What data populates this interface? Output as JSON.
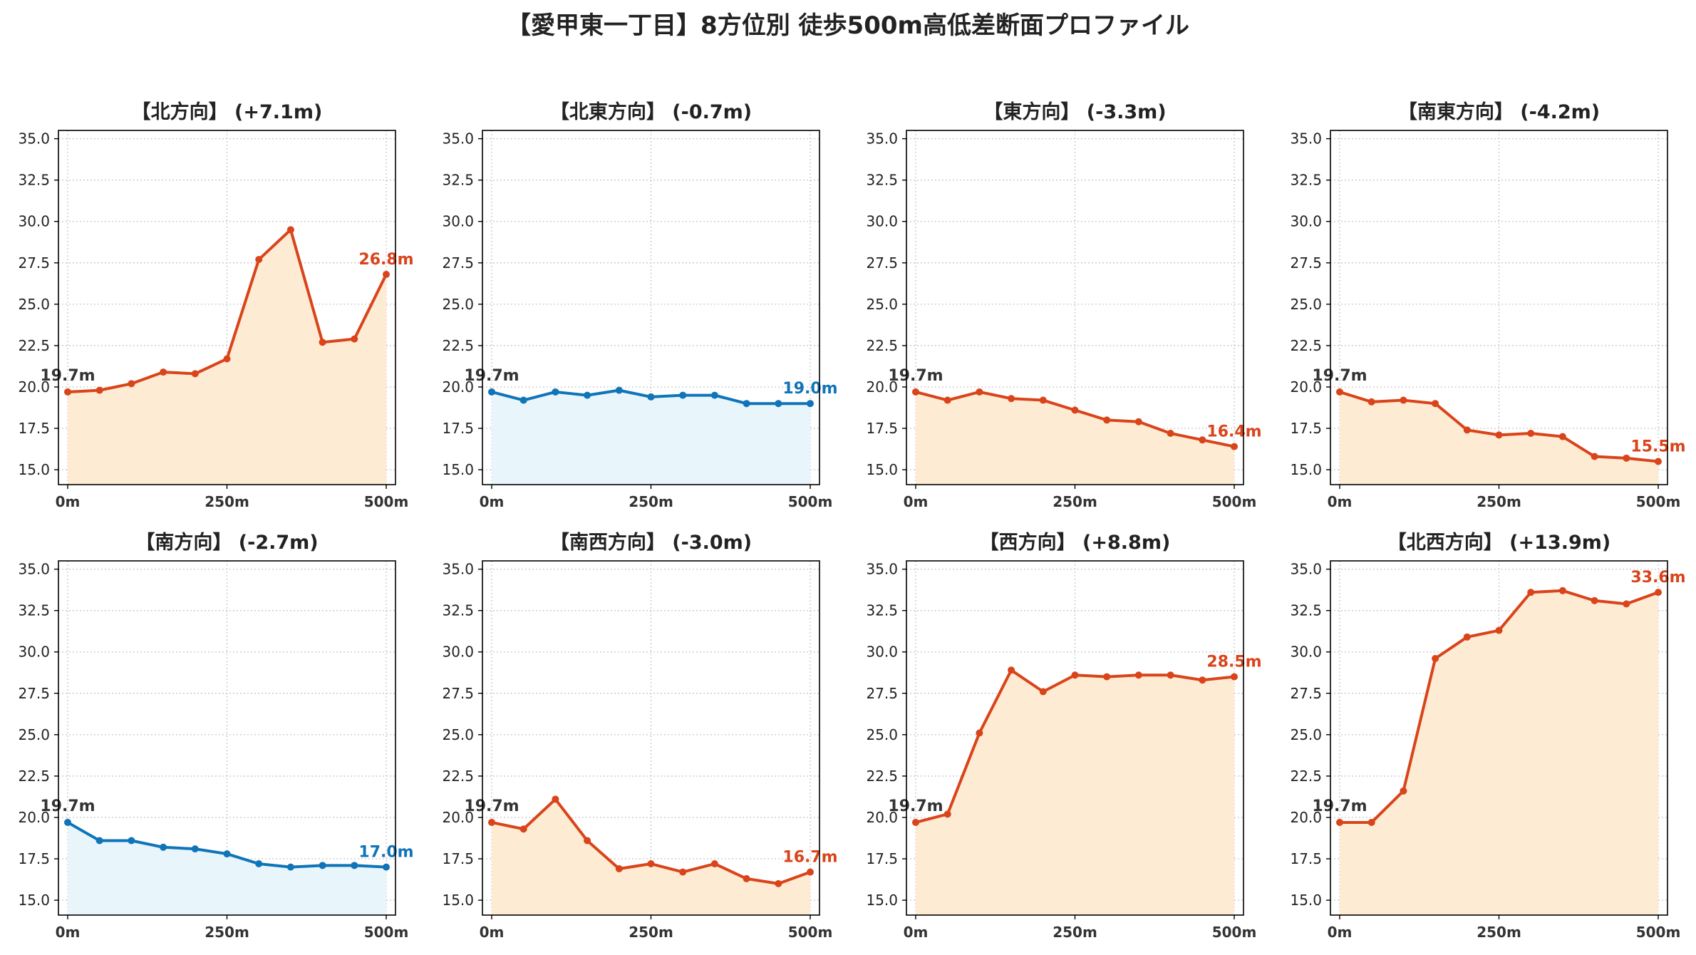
{
  "title": "【愛甲東一丁目】8方位別 徒歩500m高低差断面プロファイル",
  "colors": {
    "up_line": "#d9441a",
    "up_fill": "#fdebd3",
    "flat_line": "#0f74b8",
    "flat_fill": "#e8f5fb",
    "start_label": "#333333",
    "grid": "#c8c8c8",
    "axis": "#000000"
  },
  "chart_data": [
    {
      "type": "area",
      "title": "【北方向】 (+7.1m)",
      "x": [
        0,
        50,
        100,
        150,
        200,
        250,
        300,
        350,
        400,
        450,
        500
      ],
      "values": [
        19.7,
        19.8,
        20.2,
        20.9,
        20.8,
        21.7,
        27.7,
        29.5,
        22.7,
        22.9,
        26.8
      ],
      "xticks": [
        "0m",
        "250m",
        "500m"
      ],
      "yticks": [
        "15.0",
        "17.5",
        "20.0",
        "22.5",
        "25.0",
        "27.5",
        "30.0",
        "32.5",
        "35.0"
      ],
      "ylim": [
        14.1,
        35.5
      ],
      "start_label": "19.7m",
      "end_label": "26.8m",
      "tone": "up",
      "grid": true
    },
    {
      "type": "area",
      "title": "【北東方向】 (-0.7m)",
      "x": [
        0,
        50,
        100,
        150,
        200,
        250,
        300,
        350,
        400,
        450,
        500
      ],
      "values": [
        19.7,
        19.2,
        19.7,
        19.5,
        19.8,
        19.4,
        19.5,
        19.5,
        19.0,
        19.0,
        19.0
      ],
      "xticks": [
        "0m",
        "250m",
        "500m"
      ],
      "yticks": [
        "15.0",
        "17.5",
        "20.0",
        "22.5",
        "25.0",
        "27.5",
        "30.0",
        "32.5",
        "35.0"
      ],
      "ylim": [
        14.1,
        35.5
      ],
      "start_label": "19.7m",
      "end_label": "19.0m",
      "tone": "flat",
      "grid": true
    },
    {
      "type": "area",
      "title": "【東方向】 (-3.3m)",
      "x": [
        0,
        50,
        100,
        150,
        200,
        250,
        300,
        350,
        400,
        450,
        500
      ],
      "values": [
        19.7,
        19.2,
        19.7,
        19.3,
        19.2,
        18.6,
        18.0,
        17.9,
        17.2,
        16.8,
        16.4
      ],
      "xticks": [
        "0m",
        "250m",
        "500m"
      ],
      "yticks": [
        "15.0",
        "17.5",
        "20.0",
        "22.5",
        "25.0",
        "27.5",
        "30.0",
        "32.5",
        "35.0"
      ],
      "ylim": [
        14.1,
        35.5
      ],
      "start_label": "19.7m",
      "end_label": "16.4m",
      "tone": "up",
      "grid": true
    },
    {
      "type": "area",
      "title": "【南東方向】 (-4.2m)",
      "x": [
        0,
        50,
        100,
        150,
        200,
        250,
        300,
        350,
        400,
        450,
        500
      ],
      "values": [
        19.7,
        19.1,
        19.2,
        19.0,
        17.4,
        17.1,
        17.2,
        17.0,
        15.8,
        15.7,
        15.5
      ],
      "xticks": [
        "0m",
        "250m",
        "500m"
      ],
      "yticks": [
        "15.0",
        "17.5",
        "20.0",
        "22.5",
        "25.0",
        "27.5",
        "30.0",
        "32.5",
        "35.0"
      ],
      "ylim": [
        14.1,
        35.5
      ],
      "start_label": "19.7m",
      "end_label": "15.5m",
      "tone": "up",
      "grid": true
    },
    {
      "type": "area",
      "title": "【南方向】 (-2.7m)",
      "x": [
        0,
        50,
        100,
        150,
        200,
        250,
        300,
        350,
        400,
        450,
        500
      ],
      "values": [
        19.7,
        18.6,
        18.6,
        18.2,
        18.1,
        17.8,
        17.2,
        17.0,
        17.1,
        17.1,
        17.0
      ],
      "xticks": [
        "0m",
        "250m",
        "500m"
      ],
      "yticks": [
        "15.0",
        "17.5",
        "20.0",
        "22.5",
        "25.0",
        "27.5",
        "30.0",
        "32.5",
        "35.0"
      ],
      "ylim": [
        14.1,
        35.5
      ],
      "start_label": "19.7m",
      "end_label": "17.0m",
      "tone": "flat",
      "grid": true
    },
    {
      "type": "area",
      "title": "【南西方向】 (-3.0m)",
      "x": [
        0,
        50,
        100,
        150,
        200,
        250,
        300,
        350,
        400,
        450,
        500
      ],
      "values": [
        19.7,
        19.3,
        21.1,
        18.6,
        16.9,
        17.2,
        16.7,
        17.2,
        16.3,
        16.0,
        16.7
      ],
      "xticks": [
        "0m",
        "250m",
        "500m"
      ],
      "yticks": [
        "15.0",
        "17.5",
        "20.0",
        "22.5",
        "25.0",
        "27.5",
        "30.0",
        "32.5",
        "35.0"
      ],
      "ylim": [
        14.1,
        35.5
      ],
      "start_label": "19.7m",
      "end_label": "16.7m",
      "tone": "up",
      "grid": true
    },
    {
      "type": "area",
      "title": "【西方向】 (+8.8m)",
      "x": [
        0,
        50,
        100,
        150,
        200,
        250,
        300,
        350,
        400,
        450,
        500
      ],
      "values": [
        19.7,
        20.2,
        25.1,
        28.9,
        27.6,
        28.6,
        28.5,
        28.6,
        28.6,
        28.3,
        28.5
      ],
      "xticks": [
        "0m",
        "250m",
        "500m"
      ],
      "yticks": [
        "15.0",
        "17.5",
        "20.0",
        "22.5",
        "25.0",
        "27.5",
        "30.0",
        "32.5",
        "35.0"
      ],
      "ylim": [
        14.1,
        35.5
      ],
      "start_label": "19.7m",
      "end_label": "28.5m",
      "tone": "up",
      "grid": true
    },
    {
      "type": "area",
      "title": "【北西方向】 (+13.9m)",
      "x": [
        0,
        50,
        100,
        150,
        200,
        250,
        300,
        350,
        400,
        450,
        500
      ],
      "values": [
        19.7,
        19.7,
        21.6,
        29.6,
        30.9,
        31.3,
        33.6,
        33.7,
        33.1,
        32.9,
        33.6
      ],
      "xticks": [
        "0m",
        "250m",
        "500m"
      ],
      "yticks": [
        "15.0",
        "17.5",
        "20.0",
        "22.5",
        "25.0",
        "27.5",
        "30.0",
        "32.5",
        "35.0"
      ],
      "ylim": [
        14.1,
        35.5
      ],
      "start_label": "19.7m",
      "end_label": "33.6m",
      "tone": "up",
      "grid": true
    }
  ]
}
